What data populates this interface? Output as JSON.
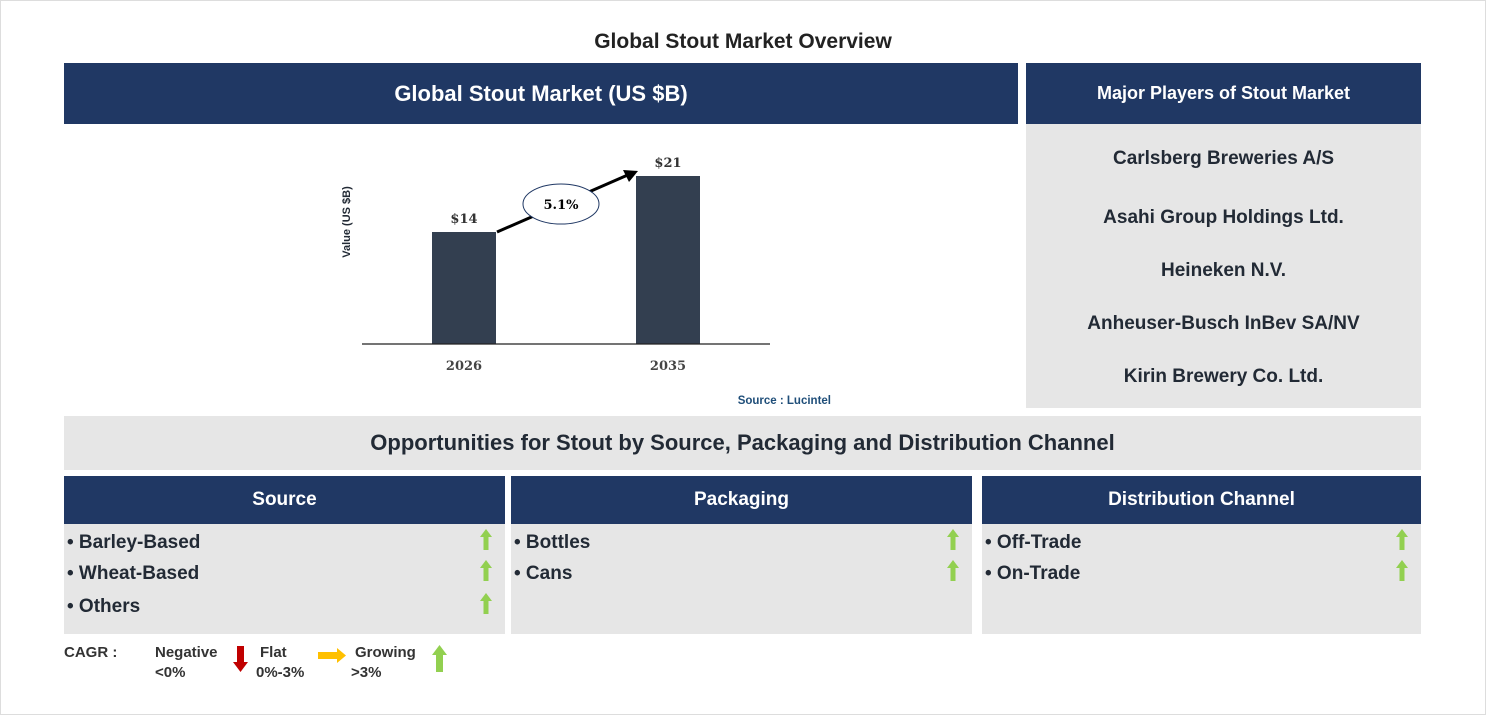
{
  "title": "Global Stout Market Overview",
  "chart_header": "Global Stout Market (US $B)",
  "chart_data": {
    "type": "bar",
    "categories": [
      "2026",
      "2035"
    ],
    "values": [
      14,
      21
    ],
    "data_labels": [
      "$14",
      "$21"
    ],
    "ylabel": "Value (US $B)",
    "cagr_label": "5.1%",
    "bar_color": "#333f50",
    "source": "Source : Lucintel"
  },
  "players": {
    "header": "Major Players of Stout Market",
    "items": [
      "Carlsberg Breweries A/S",
      "Asahi Group Holdings Ltd.",
      "Heineken N.V.",
      "Anheuser-Busch InBev SA/NV",
      "Kirin Brewery Co. Ltd."
    ]
  },
  "opportunities": "Opportunities for Stout by Source, Packaging and Distribution Channel",
  "segments": [
    {
      "header": "Source",
      "items": [
        "• Barley-Based",
        "• Wheat-Based",
        "• Others"
      ],
      "trend": "growing"
    },
    {
      "header": "Packaging",
      "items": [
        "• Bottles",
        "• Cans"
      ],
      "trend": "growing"
    },
    {
      "header": "Distribution Channel",
      "items": [
        "• Off-Trade",
        "• On-Trade"
      ],
      "trend": "growing"
    }
  ],
  "legend": {
    "label": "CAGR :",
    "negative": [
      "Negative",
      "<0%"
    ],
    "flat": [
      "Flat",
      "0%-3%"
    ],
    "growing": [
      "Growing",
      ">3%"
    ],
    "colors": {
      "negative": "#c00000",
      "flat": "#ffc000",
      "growing": "#92d050"
    }
  }
}
